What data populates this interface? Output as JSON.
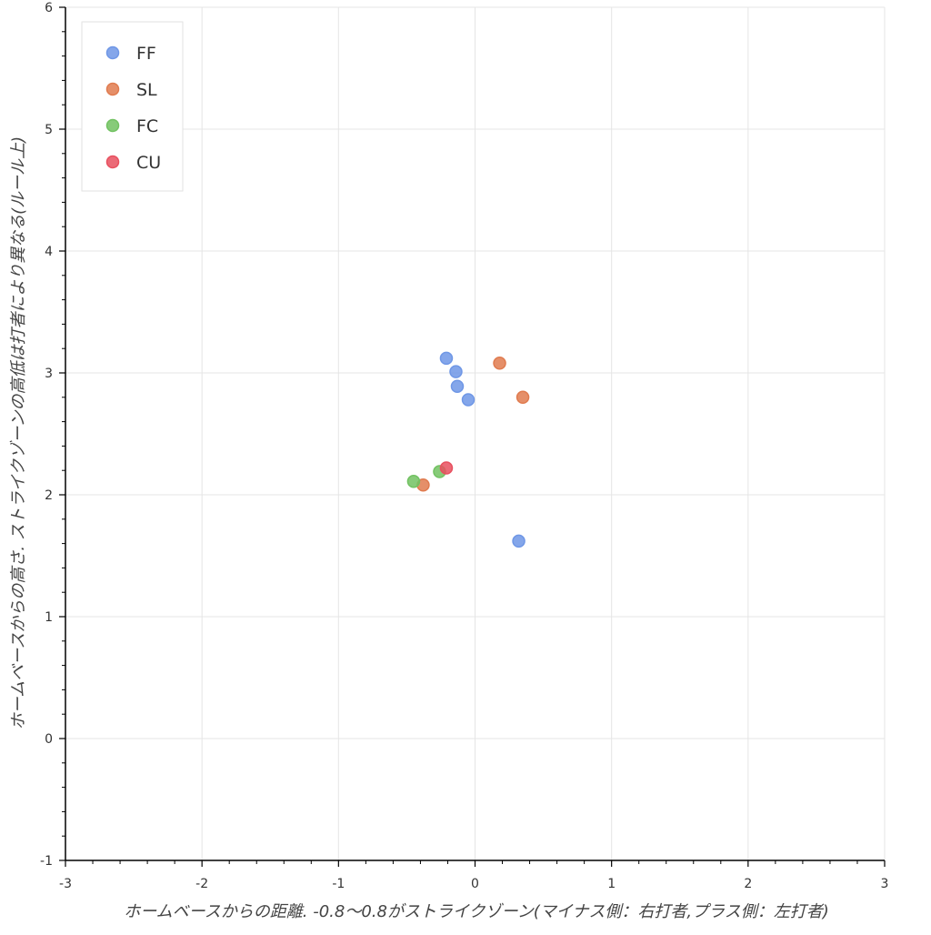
{
  "chart_data": {
    "type": "scatter",
    "title": "",
    "xlabel": "ホームベースからの距離. -0.8〜0.8がストライクゾーン(マイナス側：右打者,プラス側：左打者)",
    "ylabel": "ホームベースからの高さ. ストライクゾーンの高低は打者により異なる(ルール上)",
    "xlim": [
      -3,
      3
    ],
    "ylim": [
      -1,
      6
    ],
    "x_ticks": [
      -3,
      -2,
      -1,
      0,
      1,
      2,
      3
    ],
    "y_ticks": [
      -1,
      0,
      1,
      2,
      3,
      4,
      5,
      6
    ],
    "x_tick_labels": [
      "-3",
      "-2",
      "-1",
      "0",
      "1",
      "2",
      "3"
    ],
    "y_tick_labels": [
      "-1",
      "0",
      "1",
      "2",
      "3",
      "4",
      "5",
      "6"
    ],
    "grid": true,
    "legend_position": "top-left",
    "series": [
      {
        "name": "FF",
        "color": "#6f97e6",
        "points": [
          [
            -0.21,
            3.12
          ],
          [
            -0.14,
            3.01
          ],
          [
            -0.13,
            2.89
          ],
          [
            -0.05,
            2.78
          ],
          [
            0.32,
            1.62
          ]
        ]
      },
      {
        "name": "SL",
        "color": "#e07b4f",
        "points": [
          [
            0.18,
            3.08
          ],
          [
            0.35,
            2.8
          ],
          [
            -0.38,
            2.08
          ]
        ]
      },
      {
        "name": "FC",
        "color": "#72c262",
        "points": [
          [
            -0.45,
            2.11
          ],
          [
            -0.26,
            2.19
          ]
        ]
      },
      {
        "name": "CU",
        "color": "#e8505f",
        "points": [
          [
            -0.21,
            2.22
          ]
        ]
      }
    ]
  }
}
